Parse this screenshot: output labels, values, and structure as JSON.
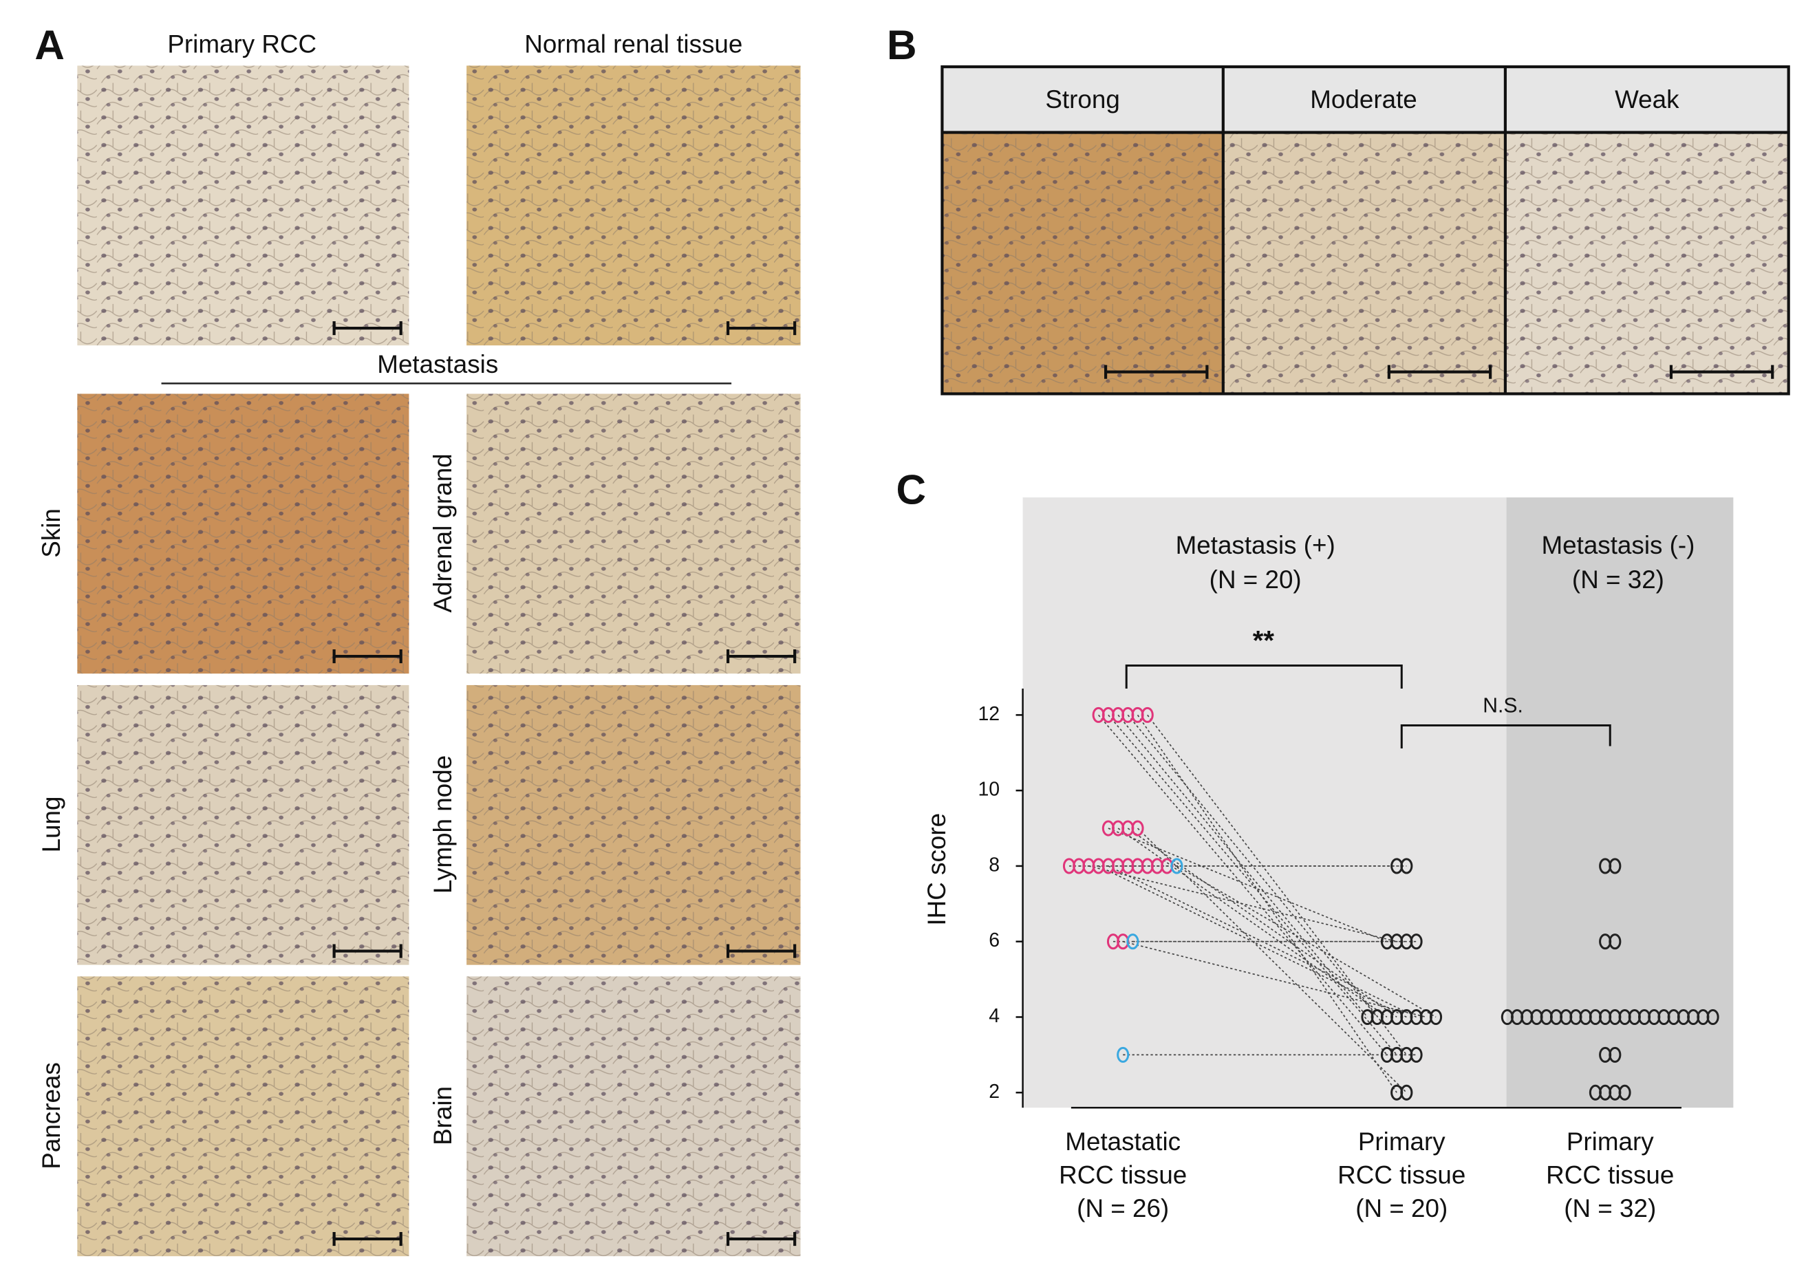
{
  "panel_a": {
    "letter": "A",
    "column_titles": [
      "Primary RCC",
      "Normal renal tissue"
    ],
    "section_title": "Metastasis",
    "row_labels": [
      "Skin",
      "Adrenal grand",
      "Lung",
      "Lymph node",
      "Pancreas",
      "Brain"
    ]
  },
  "panel_b": {
    "letter": "B",
    "headers": [
      "Strong",
      "Moderate",
      "Weak"
    ]
  },
  "chart_data": {
    "type": "strip",
    "letter": "C",
    "y_label": "IHC score",
    "categories": [
      [
        "Metastatic",
        "RCC tissue",
        "(N = 26)"
      ],
      [
        "Primary",
        "RCC tissue",
        "(N = 20)"
      ],
      [
        "Primary",
        "RCC tissue",
        "(N = 32)"
      ]
    ],
    "group_headers": [
      [
        "Metastasis (+)",
        "(N = 20)"
      ],
      [
        "Metastasis (-)",
        "(N = 32)"
      ]
    ],
    "annotations": [
      "**",
      "N.S."
    ],
    "ylim": [
      1.6,
      12.7
    ],
    "yticks": [
      2,
      4,
      6,
      8,
      10,
      12
    ],
    "grid": false,
    "series": [
      {
        "category": 0,
        "color": "#e0357a",
        "values": [
          12,
          12,
          12,
          12,
          12,
          12,
          9,
          9,
          9,
          9,
          8,
          8,
          8,
          8,
          8,
          8,
          8,
          8,
          8,
          8,
          8,
          6,
          6
        ]
      },
      {
        "category": 0,
        "color": "#3aa8e0",
        "values": [
          8,
          6,
          3
        ]
      },
      {
        "category": 1,
        "color": "#222222",
        "values": [
          8,
          8,
          6,
          6,
          6,
          6,
          4,
          4,
          4,
          4,
          4,
          4,
          4,
          4,
          3,
          3,
          3,
          3,
          2,
          2
        ]
      },
      {
        "category": 2,
        "color": "#222222",
        "values": [
          8,
          8,
          6,
          6,
          4,
          4,
          4,
          4,
          4,
          4,
          4,
          4,
          4,
          4,
          4,
          4,
          4,
          4,
          4,
          4,
          4,
          4,
          4,
          4,
          4,
          4,
          3,
          3,
          2,
          2,
          2,
          2
        ]
      }
    ],
    "pairs": [
      [
        0,
        0,
        2,
        14
      ],
      [
        0,
        1,
        2,
        15
      ],
      [
        0,
        2,
        2,
        6
      ],
      [
        0,
        3,
        2,
        7
      ],
      [
        0,
        4,
        2,
        18
      ],
      [
        0,
        5,
        2,
        16
      ],
      [
        0,
        6,
        2,
        2
      ],
      [
        0,
        7,
        2,
        8
      ],
      [
        0,
        8,
        2,
        9
      ],
      [
        0,
        9,
        2,
        19
      ],
      [
        0,
        10,
        2,
        0
      ],
      [
        0,
        11,
        2,
        1
      ],
      [
        0,
        12,
        2,
        3
      ],
      [
        0,
        13,
        2,
        10
      ],
      [
        0,
        14,
        2,
        11
      ],
      [
        0,
        21,
        2,
        4
      ],
      [
        0,
        22,
        2,
        12
      ],
      [
        1,
        1,
        2,
        5
      ],
      [
        1,
        2,
        2,
        17
      ],
      [
        1,
        0,
        2,
        13
      ]
    ]
  }
}
